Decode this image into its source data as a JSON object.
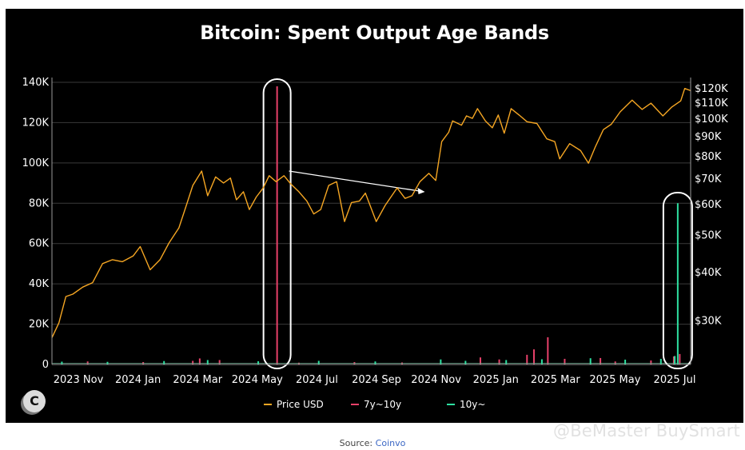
{
  "chart_data": {
    "type": "line",
    "title": "Bitcoin: Spent Output Age Bands",
    "x_ticks": [
      "2023 Nov",
      "2024 Jan",
      "2024 Mar",
      "2024 May",
      "2024 Jul",
      "2024 Sep",
      "2024 Nov",
      "2025 Jan",
      "2025 Mar",
      "2025 May",
      "2025 Jul"
    ],
    "x_range": [
      "2023-10-15",
      "2025-07-20"
    ],
    "y_left": {
      "ticks": [
        "0",
        "20K",
        "40K",
        "60K",
        "80K",
        "100K",
        "120K",
        "140K"
      ],
      "range": [
        0,
        140000
      ]
    },
    "y_right": {
      "scale": "log",
      "ticks": [
        "$30K",
        "$40K",
        "$50K",
        "$60K",
        "$70K",
        "$80K",
        "$90K",
        "$100K",
        "$110K",
        "$120K"
      ],
      "range": [
        23000,
        124000
      ]
    },
    "legend": [
      "Price USD",
      "7y~10y",
      "10y~"
    ],
    "legend_position": "bottom",
    "colors": {
      "price": "#f5a623",
      "band_7_10": "#e8416a",
      "band_10": "#2ee0a1",
      "grid": "#3a3a3a",
      "annotation": "#ffffff"
    },
    "series": [
      {
        "name": "Price USD",
        "axis": "right",
        "points": [
          [
            "2023-10-15",
            27000
          ],
          [
            "2023-10-22",
            29500
          ],
          [
            "2023-10-29",
            34500
          ],
          [
            "2023-11-05",
            35000
          ],
          [
            "2023-11-15",
            36500
          ],
          [
            "2023-11-25",
            37500
          ],
          [
            "2023-12-05",
            42000
          ],
          [
            "2023-12-15",
            43000
          ],
          [
            "2023-12-25",
            42500
          ],
          [
            "2024-01-05",
            44000
          ],
          [
            "2024-01-12",
            46500
          ],
          [
            "2024-01-22",
            40500
          ],
          [
            "2024-02-01",
            43000
          ],
          [
            "2024-02-10",
            47500
          ],
          [
            "2024-02-20",
            52000
          ],
          [
            "2024-02-28",
            60000
          ],
          [
            "2024-03-05",
            67000
          ],
          [
            "2024-03-14",
            73000
          ],
          [
            "2024-03-20",
            63000
          ],
          [
            "2024-03-28",
            70500
          ],
          [
            "2024-04-05",
            68000
          ],
          [
            "2024-04-12",
            70000
          ],
          [
            "2024-04-18",
            61500
          ],
          [
            "2024-04-25",
            64500
          ],
          [
            "2024-05-01",
            58000
          ],
          [
            "2024-05-08",
            62500
          ],
          [
            "2024-05-15",
            66000
          ],
          [
            "2024-05-21",
            71000
          ],
          [
            "2024-05-28",
            68500
          ],
          [
            "2024-06-05",
            71000
          ],
          [
            "2024-06-12",
            67500
          ],
          [
            "2024-06-20",
            64500
          ],
          [
            "2024-06-28",
            61000
          ],
          [
            "2024-07-05",
            56500
          ],
          [
            "2024-07-12",
            58000
          ],
          [
            "2024-07-20",
            67000
          ],
          [
            "2024-07-28",
            68500
          ],
          [
            "2024-08-05",
            54000
          ],
          [
            "2024-08-12",
            60500
          ],
          [
            "2024-08-20",
            61000
          ],
          [
            "2024-08-26",
            64000
          ],
          [
            "2024-09-06",
            54000
          ],
          [
            "2024-09-15",
            59500
          ],
          [
            "2024-09-27",
            66000
          ],
          [
            "2024-10-05",
            62000
          ],
          [
            "2024-10-12",
            63000
          ],
          [
            "2024-10-20",
            68500
          ],
          [
            "2024-10-29",
            72000
          ],
          [
            "2024-11-05",
            69000
          ],
          [
            "2024-11-11",
            87000
          ],
          [
            "2024-11-18",
            92000
          ],
          [
            "2024-11-22",
            98500
          ],
          [
            "2024-12-01",
            96000
          ],
          [
            "2024-12-06",
            101500
          ],
          [
            "2024-12-12",
            100000
          ],
          [
            "2024-12-17",
            106000
          ],
          [
            "2024-12-25",
            98500
          ],
          [
            "2025-01-01",
            94500
          ],
          [
            "2025-01-07",
            102000
          ],
          [
            "2025-01-13",
            91500
          ],
          [
            "2025-01-20",
            106000
          ],
          [
            "2025-01-28",
            102000
          ],
          [
            "2025-02-05",
            98000
          ],
          [
            "2025-02-15",
            97000
          ],
          [
            "2025-02-25",
            88500
          ],
          [
            "2025-03-05",
            87000
          ],
          [
            "2025-03-10",
            78500
          ],
          [
            "2025-03-20",
            86000
          ],
          [
            "2025-03-31",
            82500
          ],
          [
            "2025-04-08",
            76500
          ],
          [
            "2025-04-15",
            84500
          ],
          [
            "2025-04-23",
            93500
          ],
          [
            "2025-05-01",
            96500
          ],
          [
            "2025-05-10",
            104000
          ],
          [
            "2025-05-22",
            111500
          ],
          [
            "2025-06-01",
            105500
          ],
          [
            "2025-06-10",
            109500
          ],
          [
            "2025-06-22",
            101500
          ],
          [
            "2025-07-01",
            107000
          ],
          [
            "2025-07-10",
            111000
          ],
          [
            "2025-07-14",
            119500
          ],
          [
            "2025-07-20",
            118000
          ]
        ]
      },
      {
        "name": "7y~10y",
        "axis": "left",
        "points": [
          [
            "2023-11-20",
            1500
          ],
          [
            "2024-01-15",
            1200
          ],
          [
            "2024-03-05",
            1800
          ],
          [
            "2024-03-12",
            3000
          ],
          [
            "2024-04-01",
            2200
          ],
          [
            "2024-05-29",
            138000
          ],
          [
            "2024-06-20",
            900
          ],
          [
            "2024-08-15",
            1200
          ],
          [
            "2024-10-02",
            1000
          ],
          [
            "2024-12-20",
            3500
          ],
          [
            "2025-01-08",
            2500
          ],
          [
            "2025-02-05",
            4800
          ],
          [
            "2025-02-12",
            7500
          ],
          [
            "2025-02-26",
            13500
          ],
          [
            "2025-03-15",
            2800
          ],
          [
            "2025-04-20",
            3200
          ],
          [
            "2025-05-05",
            1500
          ],
          [
            "2025-06-10",
            2000
          ],
          [
            "2025-07-03",
            4000
          ],
          [
            "2025-07-09",
            5200
          ]
        ]
      },
      {
        "name": "10y~",
        "axis": "left",
        "points": [
          [
            "2023-10-25",
            1400
          ],
          [
            "2023-12-10",
            1300
          ],
          [
            "2024-02-05",
            1700
          ],
          [
            "2024-03-20",
            2200
          ],
          [
            "2024-05-10",
            1600
          ],
          [
            "2024-07-10",
            1800
          ],
          [
            "2024-09-05",
            1500
          ],
          [
            "2024-11-10",
            2500
          ],
          [
            "2024-12-05",
            1800
          ],
          [
            "2025-01-15",
            2200
          ],
          [
            "2025-02-20",
            2600
          ],
          [
            "2025-04-10",
            3100
          ],
          [
            "2025-05-15",
            2400
          ],
          [
            "2025-06-20",
            2800
          ],
          [
            "2025-07-04",
            4200
          ],
          [
            "2025-07-07",
            80000
          ]
        ]
      }
    ],
    "annotations": [
      {
        "type": "highlight",
        "date": "2024-05-29"
      },
      {
        "type": "highlight",
        "date": "2025-07-07"
      },
      {
        "type": "arrow",
        "from": [
          "2024-06-10",
          73000
        ],
        "to": [
          "2024-10-25",
          64500
        ]
      }
    ]
  },
  "logo": {
    "letter": "C"
  },
  "source": {
    "label": "Source:",
    "link": "Coinvo"
  },
  "watermark": {
    "text": "@BeMaster BuySmart"
  }
}
